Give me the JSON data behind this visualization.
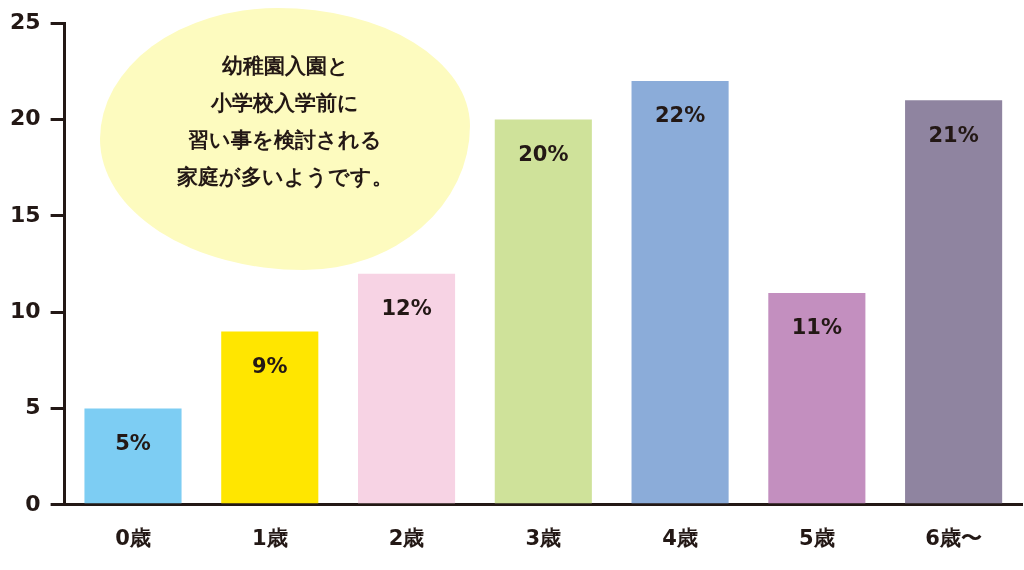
{
  "chart_data": {
    "type": "bar",
    "categories": [
      "0歳",
      "1歳",
      "2歳",
      "3歳",
      "4歳",
      "5歳",
      "6歳〜"
    ],
    "values": [
      5,
      9,
      12,
      20,
      22,
      11,
      21
    ],
    "colors": [
      "#7dcdf3",
      "#ffe600",
      "#f7d3e4",
      "#cfe29a",
      "#8bacd9",
      "#c38fbf",
      "#8f84a0"
    ],
    "value_labels": [
      "5%",
      "9%",
      "12%",
      "20%",
      "22%",
      "11%",
      "21%"
    ],
    "ylim": [
      0,
      25
    ],
    "yticks": [
      0,
      5,
      10,
      15,
      20,
      25
    ],
    "grid": false,
    "legend": false,
    "annotations": [
      "幼稚園入園と",
      "小学校入学前に",
      "習い事を検討される",
      "家庭が多いようです。"
    ]
  }
}
